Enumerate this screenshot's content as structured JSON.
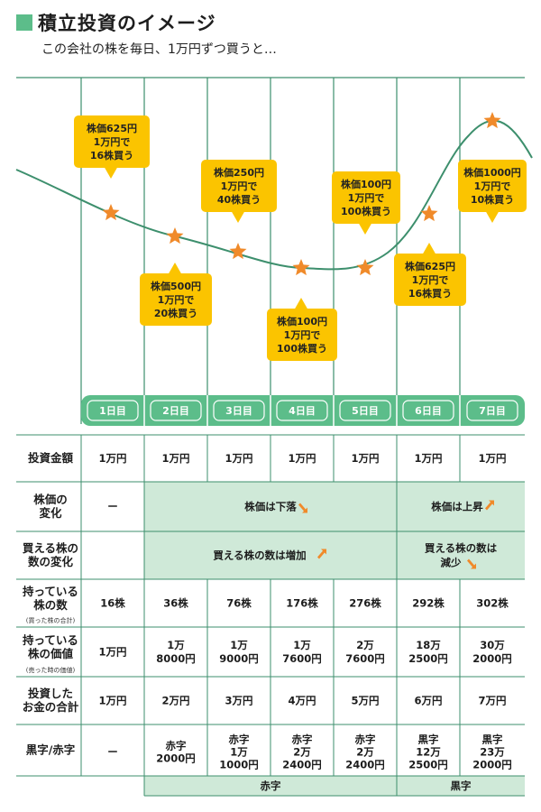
{
  "title": "積立投資のイメージ",
  "subtitle": "この会社の株を毎日、1万円ずつ買うと…",
  "colors": {
    "accent_green": "#5cbd8a",
    "light_green": "#cfe9d8",
    "curve": "#3d8f6d",
    "bubble": "#fbc400",
    "star": "#f08a2a",
    "arrow": "#f08a2a"
  },
  "bubbles": [
    {
      "lines": [
        "株価625円",
        "1万円で",
        "16株買う"
      ]
    },
    {
      "lines": [
        "株価500円",
        "1万円で",
        "20株買う"
      ]
    },
    {
      "lines": [
        "株価250円",
        "1万円で",
        "40株買う"
      ]
    },
    {
      "lines": [
        "株価100円",
        "1万円で",
        "100株買う"
      ]
    },
    {
      "lines": [
        "株価100円",
        "1万円で",
        "100株買う"
      ]
    },
    {
      "lines": [
        "株価625円",
        "1万円で",
        "16株買う"
      ]
    },
    {
      "lines": [
        "株価1000円",
        "1万円で",
        "10株買う"
      ]
    }
  ],
  "days": [
    "1日目",
    "2日目",
    "3日目",
    "4日目",
    "5日目",
    "6日目",
    "7日目"
  ],
  "rows": {
    "investment_amount": {
      "header": [
        "投資金額"
      ],
      "values": [
        "1万円",
        "1万円",
        "1万円",
        "1万円",
        "1万円",
        "1万円",
        "1万円"
      ]
    },
    "price_change": {
      "header": [
        "株価の",
        "変化"
      ],
      "first": "ー",
      "down_label": "株価は下落",
      "up_label": "株価は上昇"
    },
    "shares_change": {
      "header": [
        "買える株の",
        "数の変化"
      ],
      "increase_label": "買える株の数は増加",
      "decrease_label": [
        "買える株の数は",
        "減少"
      ]
    },
    "shares_held": {
      "header": [
        "持っている",
        "株の数"
      ],
      "note": "(買った株の合計)",
      "values": [
        "16株",
        "36株",
        "76株",
        "176株",
        "276株",
        "292株",
        "302株"
      ]
    },
    "holdings_value": {
      "header": [
        "持っている",
        "株の価値"
      ],
      "note": "(売った時の価値)",
      "values": [
        [
          "1万円"
        ],
        [
          "1万",
          "8000円"
        ],
        [
          "1万",
          "9000円"
        ],
        [
          "1万",
          "7600円"
        ],
        [
          "2万",
          "7600円"
        ],
        [
          "18万",
          "2500円"
        ],
        [
          "30万",
          "2000円"
        ]
      ]
    },
    "total_invested": {
      "header": [
        "投資した",
        "お金の合計"
      ],
      "values": [
        "1万円",
        "2万円",
        "3万円",
        "4万円",
        "5万円",
        "6万円",
        "7万円"
      ]
    },
    "profit_loss": {
      "header": [
        "黒字/赤字"
      ],
      "values": [
        [
          "ー"
        ],
        [
          "赤字",
          "2000円"
        ],
        [
          "赤字",
          "1万",
          "1000円"
        ],
        [
          "赤字",
          "2万",
          "2400円"
        ],
        [
          "赤字",
          "2万",
          "2400円"
        ],
        [
          "黒字",
          "12万",
          "2500円"
        ],
        [
          "黒字",
          "23万",
          "2000円"
        ]
      ],
      "loss_label": "赤字",
      "profit_label": "黒字"
    }
  }
}
